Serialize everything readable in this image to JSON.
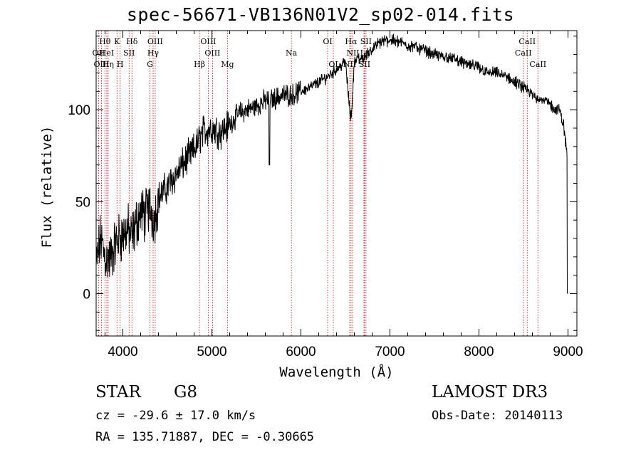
{
  "chart_data": {
    "type": "line",
    "title": "spec-56671-VB136N01V2_sp02-014.fits",
    "xlabel": "Wavelength (Å)",
    "ylabel": "Flux (relative)",
    "xlim": [
      3700,
      9100
    ],
    "ylim": [
      -23,
      143
    ],
    "x_ticks": [
      4000,
      5000,
      6000,
      7000,
      8000,
      9000
    ],
    "y_ticks": [
      0,
      50,
      100
    ],
    "x_minor_step": 200,
    "y_minor_step": 10,
    "grid": false,
    "spectrum_anchors": {
      "x": [
        3700,
        3750,
        3800,
        3850,
        3900,
        3950,
        4000,
        4050,
        4100,
        4150,
        4200,
        4250,
        4300,
        4350,
        4400,
        4500,
        4600,
        4700,
        4800,
        4900,
        5000,
        5100,
        5200,
        5300,
        5400,
        5500,
        5600,
        5700,
        5800,
        5900,
        6000,
        6100,
        6200,
        6300,
        6400,
        6500,
        6563,
        6600,
        6700,
        6800,
        6900,
        7000,
        7100,
        7200,
        7300,
        7400,
        7500,
        7600,
        7700,
        7800,
        7900,
        8000,
        8100,
        8200,
        8300,
        8400,
        8500,
        8600,
        8700,
        8800,
        8850,
        8900,
        8950,
        8990
      ],
      "y": [
        15,
        30,
        20,
        18,
        25,
        30,
        32,
        35,
        30,
        38,
        45,
        42,
        48,
        40,
        52,
        58,
        65,
        72,
        78,
        88,
        90,
        88,
        92,
        98,
        100,
        102,
        105,
        106,
        108,
        108,
        110,
        112,
        115,
        118,
        122,
        126,
        92,
        127,
        128,
        133,
        137,
        138,
        137,
        135,
        134,
        132,
        130,
        129,
        128,
        126,
        124,
        123,
        120,
        120,
        118,
        115,
        112,
        108,
        106,
        103,
        100,
        100,
        92,
        75
      ]
    },
    "spectral_lines": [
      {
        "label": "Hθ",
        "x": 3798,
        "row": 1
      },
      {
        "label": "OII",
        "x": 3727,
        "row": 2
      },
      {
        "label": "OIII",
        "x": 3760,
        "row": 3
      },
      {
        "label": "HeI",
        "x": 3820,
        "row": 2
      },
      {
        "label": "Hη",
        "x": 3835,
        "row": 3
      },
      {
        "label": "K",
        "x": 3934,
        "row": 1
      },
      {
        "label": "SII",
        "x": 4070,
        "row": 2
      },
      {
        "label": "H",
        "x": 3969,
        "row": 3
      },
      {
        "label": "Hδ",
        "x": 4102,
        "row": 1
      },
      {
        "label": "OIII",
        "x": 4363,
        "row": 1
      },
      {
        "label": "Hγ",
        "x": 4340,
        "row": 2
      },
      {
        "label": "G",
        "x": 4304,
        "row": 3
      },
      {
        "label": "OIII",
        "x": 4959,
        "row": 1
      },
      {
        "label": "OIII",
        "x": 5007,
        "row": 2
      },
      {
        "label": "Hβ",
        "x": 4861,
        "row": 3
      },
      {
        "label": "Mg",
        "x": 5175,
        "row": 3
      },
      {
        "label": "Na",
        "x": 5893,
        "row": 2
      },
      {
        "label": "OI",
        "x": 6300,
        "row": 1
      },
      {
        "label": "OI",
        "x": 6364,
        "row": 3
      },
      {
        "label": "Hα",
        "x": 6563,
        "row": 1
      },
      {
        "label": "SII",
        "x": 6731,
        "row": 1
      },
      {
        "label": "NII",
        "x": 6584,
        "row": 2
      },
      {
        "label": "Li",
        "x": 6708,
        "row": 2
      },
      {
        "label": "NII",
        "x": 6548,
        "row": 3
      },
      {
        "label": "SII",
        "x": 6716,
        "row": 3
      },
      {
        "label": "CaII",
        "x": 8542,
        "row": 1
      },
      {
        "label": "CaII",
        "x": 8498,
        "row": 2
      },
      {
        "label": "CaII",
        "x": 8662,
        "row": 3
      }
    ]
  },
  "info": {
    "object_class": "STAR",
    "subclass": "G8",
    "survey": "LAMOST DR3",
    "cz": "cz = -29.6 ± 17.0 km/s",
    "obs_date": "Obs-Date: 20140113",
    "coords": "RA = 135.71887, DEC =  -0.30665"
  }
}
